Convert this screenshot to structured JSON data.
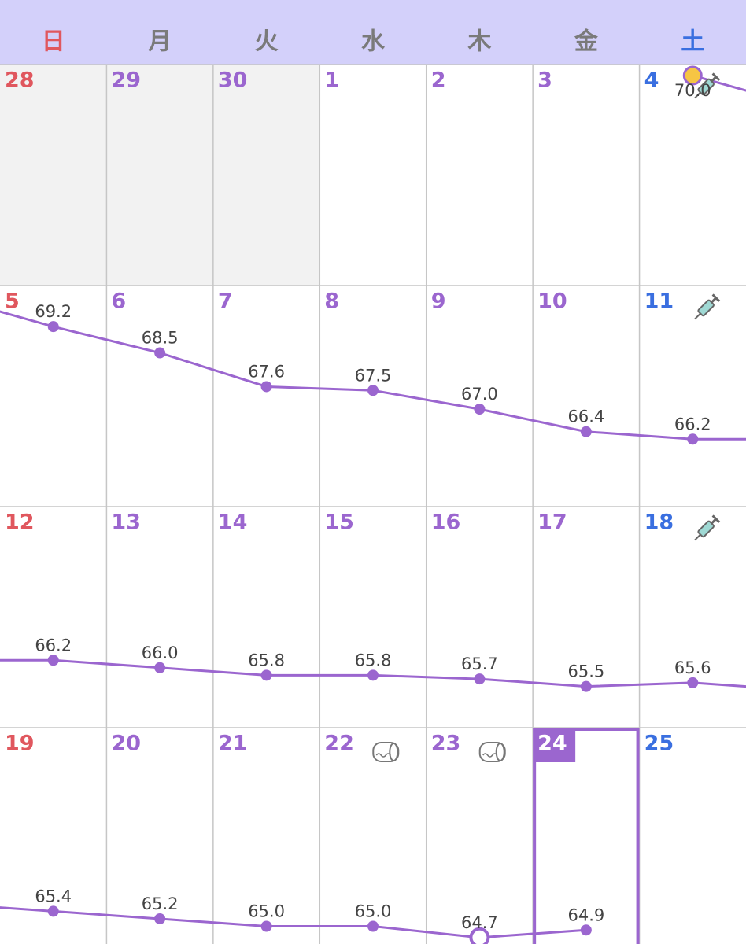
{
  "weekdays": [
    "日",
    "月",
    "火",
    "水",
    "木",
    "金",
    "土"
  ],
  "weeks": [
    {
      "days": [
        {
          "date": "28",
          "other_month": true
        },
        {
          "date": "29",
          "other_month": true
        },
        {
          "date": "30",
          "other_month": true
        },
        {
          "date": "1"
        },
        {
          "date": "2"
        },
        {
          "date": "3"
        },
        {
          "date": "4",
          "weight": {
            "value": 70.0,
            "label": "70.0"
          },
          "point_style": "start",
          "icon": "syringe"
        }
      ]
    },
    {
      "days": [
        {
          "date": "5",
          "weight": {
            "value": 69.2,
            "label": "69.2"
          }
        },
        {
          "date": "6",
          "weight": {
            "value": 68.5,
            "label": "68.5"
          }
        },
        {
          "date": "7",
          "weight": {
            "value": 67.6,
            "label": "67.6"
          }
        },
        {
          "date": "8",
          "weight": {
            "value": 67.5,
            "label": "67.5"
          }
        },
        {
          "date": "9",
          "weight": {
            "value": 67.0,
            "label": "67.0"
          }
        },
        {
          "date": "10",
          "weight": {
            "value": 66.4,
            "label": "66.4"
          }
        },
        {
          "date": "11",
          "weight": {
            "value": 66.2,
            "label": "66.2"
          },
          "icon": "syringe"
        }
      ]
    },
    {
      "days": [
        {
          "date": "12",
          "weight": {
            "value": 66.2,
            "label": "66.2"
          }
        },
        {
          "date": "13",
          "weight": {
            "value": 66.0,
            "label": "66.0"
          }
        },
        {
          "date": "14",
          "weight": {
            "value": 65.8,
            "label": "65.8"
          }
        },
        {
          "date": "15",
          "weight": {
            "value": 65.8,
            "label": "65.8"
          }
        },
        {
          "date": "16",
          "weight": {
            "value": 65.7,
            "label": "65.7"
          }
        },
        {
          "date": "17",
          "weight": {
            "value": 65.5,
            "label": "65.5"
          }
        },
        {
          "date": "18",
          "weight": {
            "value": 65.6,
            "label": "65.6"
          },
          "icon": "syringe"
        }
      ]
    },
    {
      "days": [
        {
          "date": "19",
          "weight": {
            "value": 65.4,
            "label": "65.4"
          }
        },
        {
          "date": "20",
          "weight": {
            "value": 65.2,
            "label": "65.2"
          }
        },
        {
          "date": "21",
          "weight": {
            "value": 65.0,
            "label": "65.0"
          }
        },
        {
          "date": "22",
          "weight": {
            "value": 65.0,
            "label": "65.0"
          },
          "icon": "toilet-paper"
        },
        {
          "date": "23",
          "weight": {
            "value": 64.7,
            "label": "64.7"
          },
          "point_style": "open",
          "icon": "toilet-paper"
        },
        {
          "date": "24",
          "weight": {
            "value": 64.9,
            "label": "64.9"
          },
          "today": true
        },
        {
          "date": "25"
        }
      ]
    }
  ]
}
